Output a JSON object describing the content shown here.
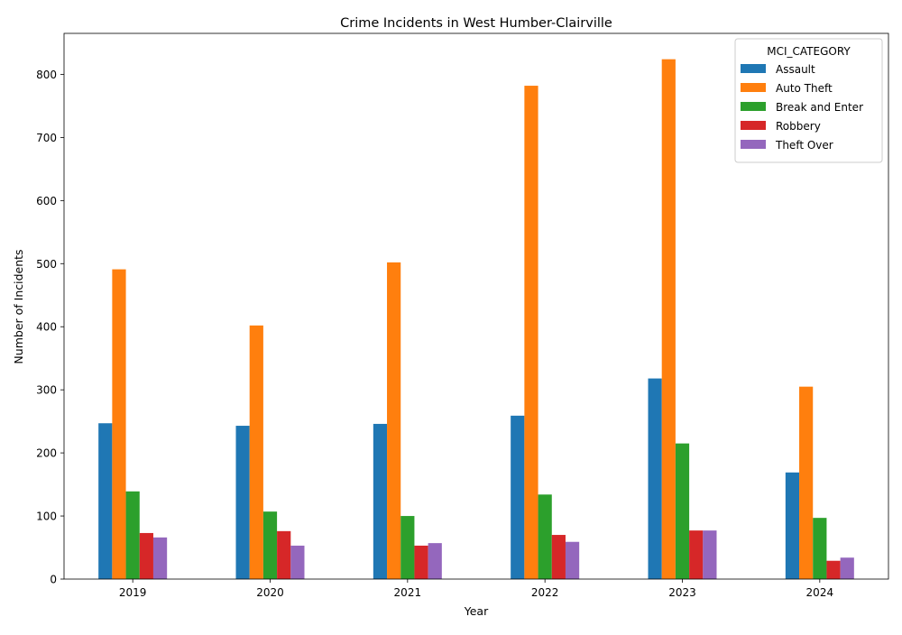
{
  "chart_data": {
    "type": "bar",
    "title": "Crime Incidents in West Humber-Clairville",
    "xlabel": "Year",
    "ylabel": "Number of Incidents",
    "categories": [
      "2019",
      "2020",
      "2021",
      "2022",
      "2023",
      "2024"
    ],
    "ylim": [
      0,
      865
    ],
    "yticks": [
      0,
      100,
      200,
      300,
      400,
      500,
      600,
      700,
      800
    ],
    "legend": {
      "title": "MCI_CATEGORY",
      "placement": "top-right"
    },
    "grid": false,
    "series": [
      {
        "name": "Assault",
        "color": "#1f77b4",
        "values": [
          247,
          243,
          246,
          259,
          318,
          169
        ]
      },
      {
        "name": "Auto Theft",
        "color": "#ff7f0e",
        "values": [
          491,
          402,
          502,
          782,
          824,
          305
        ]
      },
      {
        "name": "Break and Enter",
        "color": "#2ca02c",
        "values": [
          139,
          107,
          100,
          134,
          215,
          97
        ]
      },
      {
        "name": "Robbery",
        "color": "#d62728",
        "values": [
          73,
          76,
          53,
          70,
          77,
          29
        ]
      },
      {
        "name": "Theft Over",
        "color": "#9467bd",
        "values": [
          66,
          53,
          57,
          59,
          77,
          34
        ]
      }
    ]
  }
}
